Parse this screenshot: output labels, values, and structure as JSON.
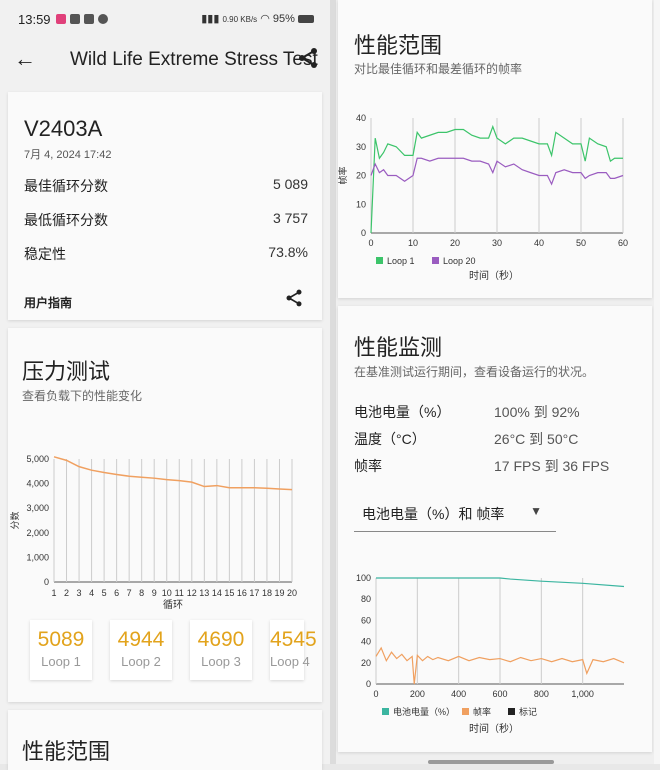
{
  "status_bar": {
    "time": "13:59",
    "speed": "0.90 KB/s",
    "battery": "95%"
  },
  "appbar": {
    "title": "Wild Life Extreme Stress Test"
  },
  "summary": {
    "device": "V2403A",
    "date": "7月 4, 2024 17:42",
    "rows": [
      {
        "label": "最佳循环分数",
        "value": "5 089"
      },
      {
        "label": "最低循环分数",
        "value": "3 757"
      },
      {
        "label": "稳定性",
        "value": "73.8%"
      }
    ],
    "guide": "用户指南"
  },
  "stress": {
    "title": "压力测试",
    "subtitle": "查看负载下的性能变化",
    "ylabel": "分数",
    "xlabel": "循环",
    "tiles": [
      {
        "score": "5089",
        "label": "Loop 1"
      },
      {
        "score": "4944",
        "label": "Loop 2"
      },
      {
        "score": "4690",
        "label": "Loop 3"
      },
      {
        "score": "4545",
        "label": "Loop 4"
      }
    ]
  },
  "range_left": {
    "title": "性能范围"
  },
  "range": {
    "title": "性能范围",
    "subtitle": "对比最佳循环和最差循环的帧率",
    "ylabel": "帧率",
    "xlabel": "时间（秒）",
    "legend": [
      "Loop 1",
      "Loop 20"
    ]
  },
  "monitor": {
    "title": "性能监测",
    "subtitle": "在基准测试运行期间，查看设备运行的状况。",
    "rows": [
      {
        "label": "电池电量（%）",
        "value": "100% 到 92%"
      },
      {
        "label": "温度（°C）",
        "value": "26°C 到 50°C"
      },
      {
        "label": "帧率",
        "value": "17 FPS 到 36 FPS"
      }
    ],
    "dropdown": "电池电量（%）和 帧率",
    "legend": [
      "电池电量（%）",
      "帧率",
      "标记"
    ],
    "xlabel": "时间（秒）"
  },
  "colors": {
    "accent": "#e2a31c",
    "orange": "#f0a060",
    "green": "#3cc46a",
    "purple": "#9a5cc0",
    "teal": "#3bb5a0"
  },
  "chart_data": [
    {
      "type": "line",
      "title": "",
      "xlabel": "循环",
      "ylabel": "分数",
      "ylim": [
        0,
        5000
      ],
      "yticks": [
        "0",
        "1,000",
        "2,000",
        "3,000",
        "4,000",
        "5,000"
      ],
      "x": [
        1,
        2,
        3,
        4,
        5,
        6,
        7,
        8,
        9,
        10,
        11,
        12,
        13,
        14,
        15,
        16,
        17,
        18,
        19,
        20
      ],
      "series": [
        {
          "values": [
            5089,
            4944,
            4690,
            4545,
            4450,
            4370,
            4300,
            4260,
            4220,
            4160,
            4120,
            4060,
            3880,
            3920,
            3830,
            3830,
            3830,
            3810,
            3780,
            3757
          ]
        }
      ],
      "grid": "vertical"
    },
    {
      "type": "line",
      "title": "",
      "xlabel": "时间（秒）",
      "ylabel": "帧率",
      "xlim": [
        0,
        60
      ],
      "ylim": [
        0,
        40
      ],
      "xticks": [
        0,
        10,
        20,
        30,
        40,
        50,
        60
      ],
      "yticks": [
        0,
        10,
        20,
        30,
        40
      ],
      "legend_position": "bottom",
      "series": [
        {
          "name": "Loop 1",
          "x": [
            0,
            1,
            2,
            3,
            4,
            6,
            8,
            10,
            11,
            12,
            14,
            16,
            18,
            20,
            22,
            24,
            26,
            28,
            29,
            30,
            32,
            34,
            36,
            38,
            40,
            42,
            43,
            44,
            46,
            48,
            50,
            51,
            52,
            54,
            56,
            57,
            58,
            60
          ],
          "values": [
            0,
            33,
            26,
            28,
            31,
            30,
            27,
            27,
            35,
            33,
            34,
            35,
            35,
            36,
            36,
            34,
            33,
            33,
            37,
            33,
            31,
            33,
            33,
            32,
            31,
            31,
            27,
            35,
            33,
            31,
            31,
            25,
            33,
            31,
            30,
            25,
            26,
            26
          ]
        },
        {
          "name": "Loop 20",
          "x": [
            0,
            1,
            2,
            3,
            4,
            6,
            8,
            10,
            11,
            12,
            14,
            16,
            18,
            20,
            22,
            24,
            26,
            28,
            29,
            30,
            32,
            34,
            36,
            38,
            40,
            42,
            43,
            44,
            46,
            48,
            50,
            51,
            52,
            54,
            56,
            57,
            58,
            60
          ],
          "values": [
            20,
            24,
            21,
            22,
            20,
            20,
            18,
            20,
            26,
            26,
            25,
            26,
            26,
            26,
            26,
            25,
            25,
            24,
            21,
            25,
            23,
            24,
            22,
            21,
            20,
            20,
            17,
            21,
            22,
            21,
            21,
            19,
            20,
            21,
            21,
            19,
            19,
            20
          ]
        }
      ],
      "grid": "vertical"
    },
    {
      "type": "line",
      "title": "",
      "xlabel": "时间（秒）",
      "ylabel": "",
      "xlim": [
        0,
        1200
      ],
      "ylim": [
        0,
        100
      ],
      "xticks": [
        "0",
        "200",
        "400",
        "600",
        "800",
        "1,000"
      ],
      "yticks": [
        0,
        20,
        40,
        60,
        80,
        100
      ],
      "legend_position": "bottom",
      "series": [
        {
          "name": "电池电量（%）",
          "x": [
            0,
            200,
            400,
            600,
            650,
            800,
            1000,
            1200
          ],
          "values": [
            100,
            100,
            100,
            100,
            99,
            97,
            95,
            92
          ]
        },
        {
          "name": "帧率",
          "x": [
            0,
            25,
            50,
            75,
            100,
            125,
            150,
            175,
            185,
            200,
            225,
            250,
            275,
            300,
            350,
            400,
            450,
            500,
            550,
            600,
            650,
            700,
            750,
            800,
            850,
            900,
            950,
            1000,
            1020,
            1050,
            1100,
            1150,
            1200
          ],
          "values": [
            26,
            34,
            22,
            30,
            24,
            28,
            22,
            26,
            0,
            27,
            22,
            26,
            23,
            25,
            22,
            26,
            22,
            25,
            23,
            24,
            21,
            25,
            22,
            24,
            21,
            24,
            21,
            23,
            10,
            23,
            21,
            24,
            20
          ]
        },
        {
          "name": "标记",
          "x": [],
          "values": []
        }
      ],
      "grid": "vertical"
    }
  ]
}
